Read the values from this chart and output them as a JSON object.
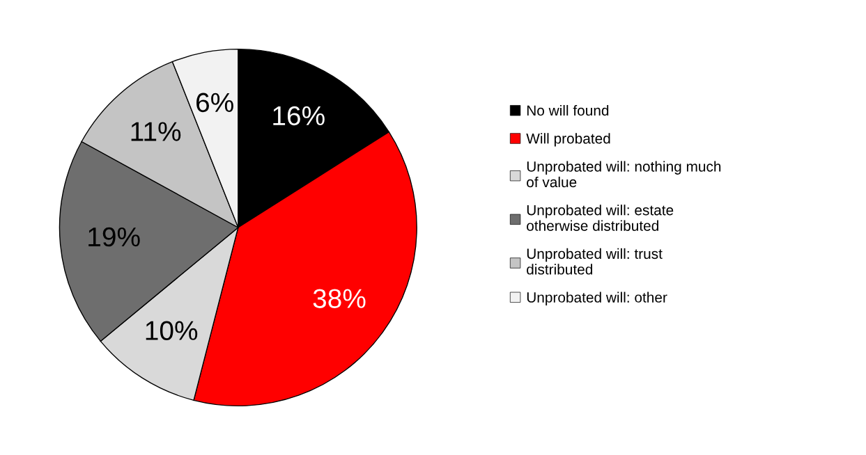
{
  "chart_data": {
    "type": "pie",
    "categories": [
      "No will found",
      "Will probated",
      "Unprobated will: nothing much of value",
      "Unprobated will: estate otherwise distributed",
      "Unprobated will: trust distributed",
      "Unprobated will: other"
    ],
    "values": [
      16,
      38,
      10,
      19,
      11,
      6
    ],
    "colors": [
      "#000000",
      "#ff0000",
      "#d9d9d9",
      "#6e6e6e",
      "#c4c4c4",
      "#f2f2f2"
    ],
    "value_labels": [
      "16%",
      "38%",
      "10%",
      "19%",
      "11%",
      "6%"
    ],
    "legend": "right"
  }
}
